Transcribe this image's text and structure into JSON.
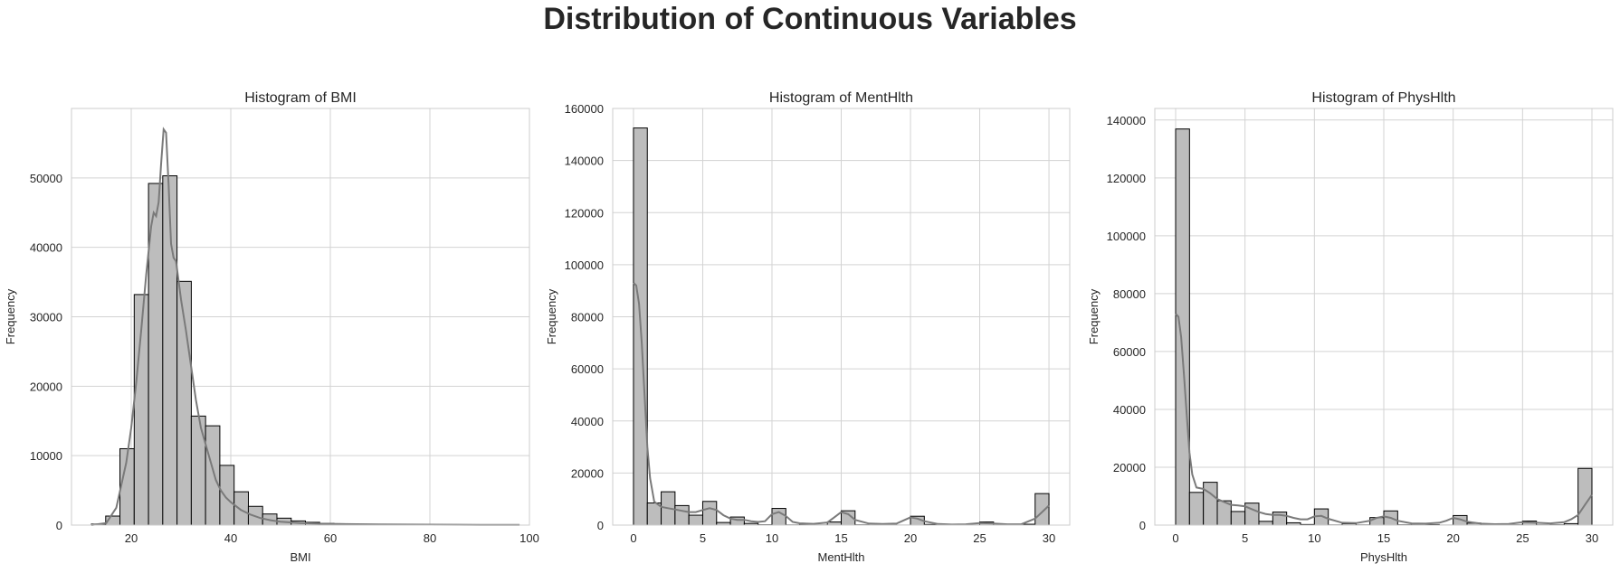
{
  "figure": {
    "title": "Distribution of Continuous Variables"
  },
  "style": {
    "bar_fill": "#bdbdbd",
    "bar_edge": "#000000",
    "kde_color": "#7a7a7a",
    "grid_color": "#d3d3d3",
    "spine_color": "#cccccc"
  },
  "chart_data": [
    {
      "type": "bar",
      "title": "Histogram of BMI",
      "xlabel": "BMI",
      "ylabel": "Frequency",
      "xlim": [
        8,
        100
      ],
      "ylim": [
        0,
        60000
      ],
      "xticks": [
        20,
        40,
        60,
        80,
        100
      ],
      "yticks": [
        0,
        10000,
        20000,
        30000,
        40000,
        50000
      ],
      "grid": true,
      "bins": {
        "left": [
          12,
          14.87,
          17.73,
          20.6,
          23.47,
          26.33,
          29.2,
          32.07,
          34.93,
          37.8,
          40.67,
          43.53,
          46.4,
          49.27,
          52.13,
          55,
          57.87,
          60.73,
          63.6,
          66.47,
          69.33,
          72.2,
          75.07,
          77.93,
          80.8,
          83.67,
          86.53,
          89.4,
          92.27,
          95.13
        ],
        "width": 2.87,
        "counts": [
          150,
          1300,
          11000,
          33200,
          49200,
          50300,
          35100,
          15700,
          14300,
          8600,
          4800,
          2700,
          1600,
          1000,
          600,
          400,
          250,
          150,
          120,
          100,
          80,
          70,
          60,
          50,
          40,
          30,
          25,
          20,
          15,
          10
        ]
      },
      "kde": {
        "x": [
          12,
          15,
          17,
          19,
          20,
          21,
          22,
          23,
          24,
          24.5,
          25,
          25.5,
          26,
          26.5,
          27,
          27.5,
          28,
          28.5,
          29,
          30,
          31,
          32,
          33,
          34,
          35,
          36,
          37,
          38,
          39,
          40,
          42,
          44,
          46,
          48,
          50,
          54,
          58,
          62,
          70,
          80,
          90,
          98
        ],
        "y": [
          0,
          300,
          2500,
          9000,
          14000,
          20500,
          28000,
          36000,
          43000,
          45000,
          44500,
          46500,
          52000,
          57000,
          56500,
          49000,
          40500,
          38500,
          38000,
          32500,
          28000,
          23000,
          18000,
          14000,
          11500,
          9000,
          6500,
          5000,
          4000,
          3300,
          2200,
          1500,
          1000,
          700,
          500,
          300,
          200,
          150,
          100,
          60,
          40,
          20
        ]
      }
    },
    {
      "type": "bar",
      "title": "Histogram of MentHlth",
      "xlabel": "MentHlth",
      "ylabel": "Frequency",
      "xlim": [
        -1.5,
        31.5
      ],
      "ylim": [
        0,
        160000
      ],
      "xticks": [
        0,
        5,
        10,
        15,
        20,
        25,
        30
      ],
      "yticks": [
        0,
        20000,
        40000,
        60000,
        80000,
        100000,
        120000,
        140000,
        160000
      ],
      "grid": true,
      "bins": {
        "left": [
          0,
          1,
          2,
          3,
          4,
          5,
          6,
          7,
          8,
          9,
          10,
          11,
          12,
          13,
          14,
          15,
          16,
          17,
          18,
          19,
          20,
          21,
          22,
          23,
          24,
          25,
          26,
          27,
          28,
          29
        ],
        "width": 1,
        "counts": [
          152500,
          8500,
          12800,
          7500,
          3800,
          9100,
          1000,
          3100,
          650,
          120,
          6400,
          70,
          400,
          50,
          1200,
          5500,
          100,
          60,
          100,
          20,
          3400,
          250,
          70,
          40,
          40,
          1200,
          50,
          80,
          330,
          12100
        ]
      },
      "kde": {
        "x": [
          0,
          0.2,
          0.4,
          0.6,
          0.8,
          1,
          1.2,
          1.5,
          2,
          2.5,
          3,
          3.5,
          4,
          4.5,
          5,
          5.5,
          6,
          6.5,
          7,
          7.5,
          8,
          8.5,
          9,
          9.5,
          10,
          10.5,
          11,
          11.5,
          12,
          13,
          14,
          14.5,
          15,
          15.5,
          16,
          17,
          18,
          19,
          19.5,
          20,
          20.5,
          21,
          22,
          23,
          24,
          25,
          26,
          27,
          28,
          29,
          29.5,
          30
        ],
        "y": [
          93000,
          92000,
          85000,
          70000,
          50000,
          30000,
          18000,
          9000,
          7000,
          6500,
          6000,
          5500,
          5000,
          5000,
          5800,
          6500,
          5800,
          3800,
          2500,
          2000,
          2000,
          1500,
          1200,
          1500,
          4200,
          5000,
          3500,
          1200,
          700,
          500,
          1000,
          3000,
          5000,
          4200,
          2000,
          600,
          400,
          600,
          1800,
          3000,
          2500,
          1500,
          400,
          200,
          300,
          800,
          600,
          300,
          300,
          2500,
          5000,
          7500
        ]
      }
    },
    {
      "type": "bar",
      "title": "Histogram of PhysHlth",
      "xlabel": "PhysHlth",
      "ylabel": "Frequency",
      "xlim": [
        -1.5,
        31.5
      ],
      "ylim": [
        0,
        144000
      ],
      "xticks": [
        0,
        5,
        10,
        15,
        20,
        25,
        30
      ],
      "yticks": [
        0,
        20000,
        40000,
        60000,
        80000,
        100000,
        120000,
        140000
      ],
      "grid": true,
      "bins": {
        "left": [
          0,
          1,
          2,
          3,
          4,
          5,
          6,
          7,
          8,
          9,
          10,
          11,
          12,
          13,
          14,
          15,
          16,
          17,
          18,
          19,
          20,
          21,
          22,
          23,
          24,
          25,
          26,
          27,
          28,
          29
        ],
        "width": 1,
        "counts": [
          136900,
          11300,
          14800,
          8400,
          4700,
          7600,
          1300,
          4500,
          800,
          200,
          5600,
          60,
          500,
          70,
          2600,
          4900,
          100,
          100,
          150,
          20,
          3300,
          700,
          70,
          60,
          80,
          1400,
          70,
          100,
          500,
          19600
        ]
      },
      "kde": {
        "x": [
          0,
          0.2,
          0.4,
          0.6,
          0.8,
          1,
          1.2,
          1.5,
          2,
          2.5,
          3,
          3.5,
          4,
          4.5,
          5,
          5.5,
          6,
          6.5,
          7,
          7.5,
          8,
          8.5,
          9,
          9.5,
          10,
          10.5,
          11,
          12,
          13,
          14,
          14.5,
          15,
          15.5,
          16,
          17,
          18,
          19,
          19.5,
          20,
          20.5,
          21,
          22,
          23,
          24,
          25,
          26,
          27,
          28,
          28.5,
          29,
          29.5,
          30
        ],
        "y": [
          73000,
          72000,
          65000,
          52000,
          38000,
          25000,
          17500,
          13000,
          12500,
          11000,
          9000,
          8000,
          7000,
          6800,
          6500,
          5500,
          4500,
          3800,
          3500,
          3500,
          3200,
          2500,
          2000,
          2000,
          3000,
          3200,
          2200,
          800,
          700,
          1500,
          2500,
          3000,
          2500,
          1500,
          600,
          500,
          800,
          1500,
          2500,
          2000,
          1200,
          500,
          300,
          400,
          1000,
          800,
          600,
          1000,
          2000,
          3500,
          7000,
          10500
        ]
      }
    }
  ]
}
